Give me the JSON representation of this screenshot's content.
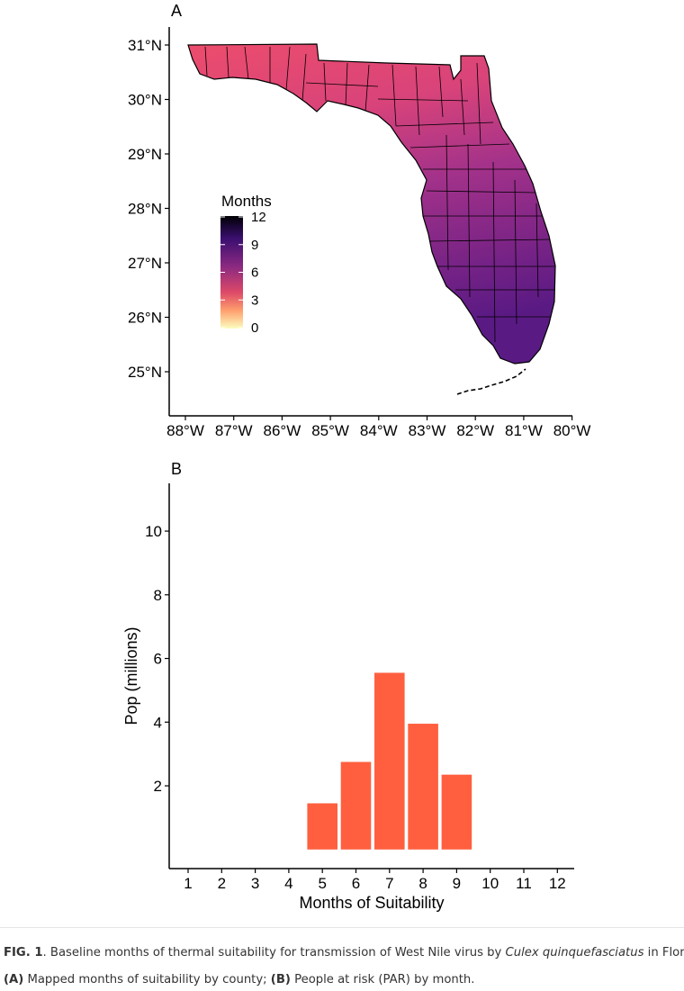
{
  "panel_a": {
    "label": "A",
    "lat_ticks": [
      "31°N",
      "30°N",
      "29°N",
      "28°N",
      "27°N",
      "26°N",
      "25°N"
    ],
    "lon_ticks": [
      "88°W",
      "87°W",
      "86°W",
      "85°W",
      "84°W",
      "83°W",
      "82°W",
      "81°W",
      "80°W"
    ],
    "legend": {
      "title": "Months",
      "ticks": [
        "12",
        "9",
        "6",
        "3",
        "0"
      ],
      "colors": [
        "#000004",
        "#3b0f70",
        "#8c2981",
        "#de4968",
        "#fe9f6d",
        "#fcfdbf"
      ]
    },
    "map_colors": {
      "panhandle": "#ec4d6c",
      "north": "#d8437a",
      "central": "#a3328a",
      "south": "#7b2486",
      "keys": "#5a1a84"
    }
  },
  "chart_data": {
    "type": "bar",
    "title": "",
    "panel_label": "B",
    "xlabel": "Months of Suitability",
    "ylabel": "Pop (millions)",
    "categories": [
      "1",
      "2",
      "3",
      "4",
      "5",
      "6",
      "7",
      "8",
      "9",
      "10",
      "11",
      "12"
    ],
    "values": [
      0,
      0,
      0,
      0,
      1.45,
      2.75,
      5.55,
      3.95,
      2.35,
      0,
      0,
      0
    ],
    "ylim": [
      -0.6,
      11.5
    ],
    "yticks": [
      "2",
      "4",
      "6",
      "8",
      "10"
    ],
    "bar_color": "#ff5f3f",
    "grid": false
  },
  "caption": {
    "fig_label": "FIG. 1",
    "line1_text": ". Baseline months of thermal suitability for transmission of West Nile virus by ",
    "line1_species": "Culex quinquefasciatus",
    "line1_end": " in Florida,",
    "a_label": "(A)",
    "a_text": " Mapped months of suitability by county; ",
    "b_label": "(B)",
    "b_text": " People at risk (PAR) by month."
  }
}
